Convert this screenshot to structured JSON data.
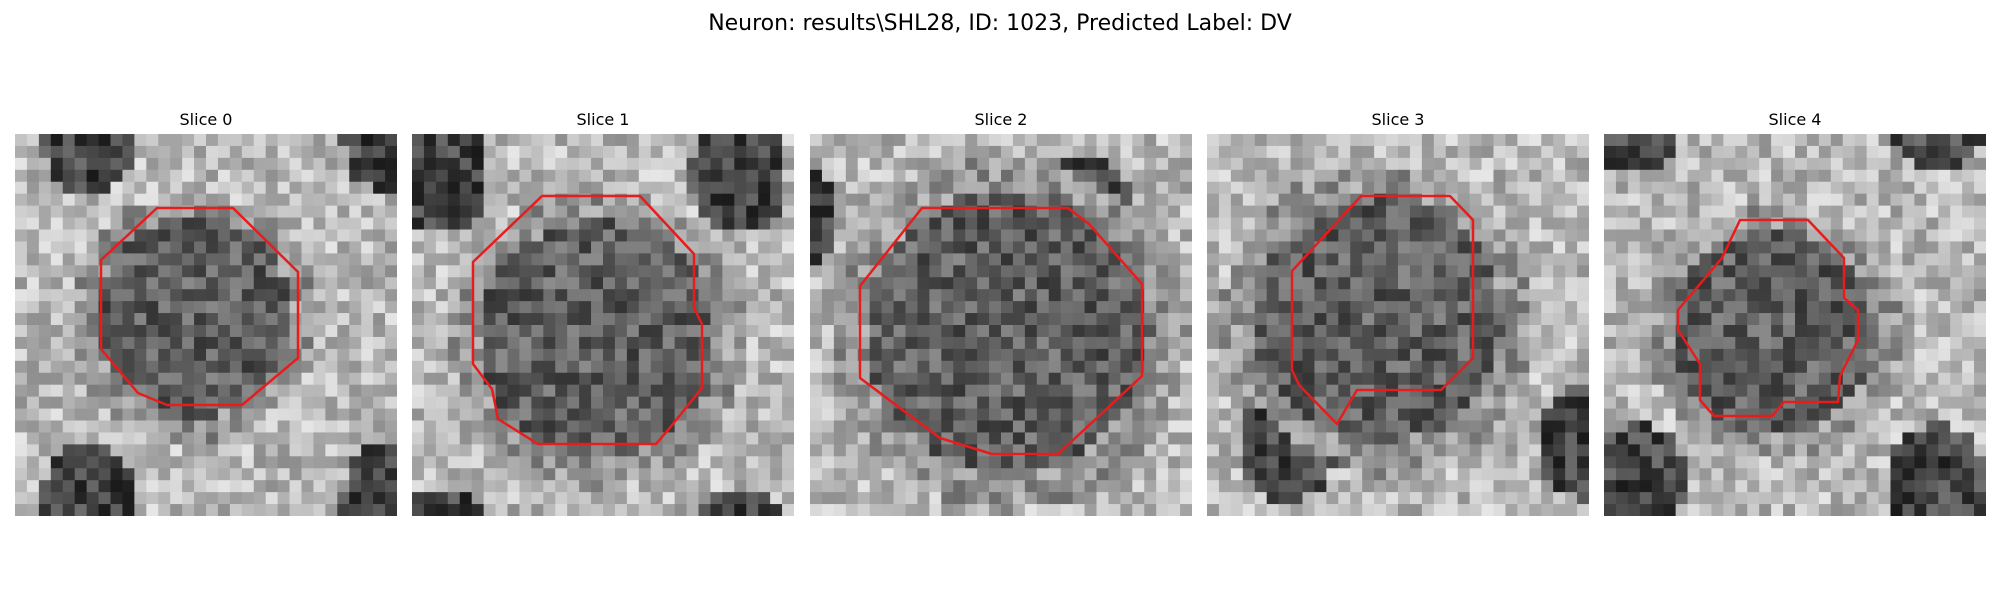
{
  "figure": {
    "title": "Neuron: results\\SHL28, ID: 1023, Predicted Label: DV"
  },
  "colors": {
    "contour": "#e81c1c",
    "background": "#ffffff"
  },
  "image": {
    "colormap": "grayscale",
    "grid_cells_per_side": 32
  },
  "slices": [
    {
      "label": "Slice 0",
      "contour_diameter_fraction": 0.52
    },
    {
      "label": "Slice 1",
      "contour_diameter_fraction": 0.62
    },
    {
      "label": "Slice 2",
      "contour_diameter_fraction": 0.75
    },
    {
      "label": "Slice 3",
      "contour_diameter_fraction": 0.65
    },
    {
      "label": "Slice 4",
      "contour_diameter_fraction": 0.53
    }
  ]
}
